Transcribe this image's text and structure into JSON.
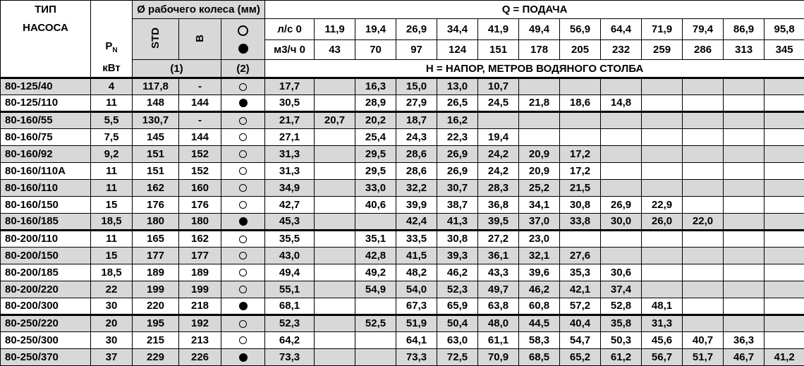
{
  "colors": {
    "grid": "#000000",
    "row_shade": "#d8d8d8",
    "background": "#ffffff"
  },
  "header": {
    "pump_type_line1": "ТИП",
    "pump_type_line2": "НАСОСА",
    "power_label": "P",
    "power_sub": "N",
    "power_unit": "кВт",
    "impeller_title": "Ø рабочего колеса (мм)",
    "impeller_std_label": "STD",
    "impeller_b_label": "В",
    "impeller_open_marker": "open-circle",
    "impeller_filled_marker": "filled-circle",
    "note1": "(1)",
    "note2": "(2)",
    "q_title": "Q = ПОДАЧА",
    "flow_ls": [
      "л/с 0",
      "11,9",
      "19,4",
      "26,9",
      "34,4",
      "41,9",
      "49,4",
      "56,9",
      "64,4",
      "71,9",
      "79,4",
      "86,9",
      "95,8"
    ],
    "flow_m3h": [
      "м3/ч 0",
      "43",
      "70",
      "97",
      "124",
      "151",
      "178",
      "205",
      "232",
      "259",
      "286",
      "313",
      "345"
    ],
    "head_note": "Н = НАПОР, МЕТРОВ ВОДЯНОГО СТОЛБА"
  },
  "rows": [
    {
      "type": "80-125/40",
      "pn": "4",
      "std": "117,8",
      "b": "-",
      "marker": "open",
      "group_end": false,
      "head": [
        "17,7",
        "",
        "16,3",
        "15,0",
        "13,0",
        "10,7",
        "",
        "",
        "",
        "",
        "",
        "",
        ""
      ]
    },
    {
      "type": "80-125/110",
      "pn": "11",
      "std": "148",
      "b": "144",
      "marker": "filled",
      "group_end": true,
      "head": [
        "30,5",
        "",
        "28,9",
        "27,9",
        "26,5",
        "24,5",
        "21,8",
        "18,6",
        "14,8",
        "",
        "",
        "",
        ""
      ]
    },
    {
      "type": "80-160/55",
      "pn": "5,5",
      "std": "130,7",
      "b": "-",
      "marker": "open",
      "group_end": false,
      "head": [
        "21,7",
        "20,7",
        "20,2",
        "18,7",
        "16,2",
        "",
        "",
        "",
        "",
        "",
        "",
        "",
        ""
      ]
    },
    {
      "type": "80-160/75",
      "pn": "7,5",
      "std": "145",
      "b": "144",
      "marker": "open",
      "group_end": false,
      "head": [
        "27,1",
        "",
        "25,4",
        "24,3",
        "22,3",
        "19,4",
        "",
        "",
        "",
        "",
        "",
        "",
        ""
      ]
    },
    {
      "type": "80-160/92",
      "pn": "9,2",
      "std": "151",
      "b": "152",
      "marker": "open",
      "group_end": false,
      "head": [
        "31,3",
        "",
        "29,5",
        "28,6",
        "26,9",
        "24,2",
        "20,9",
        "17,2",
        "",
        "",
        "",
        "",
        ""
      ]
    },
    {
      "type": "80-160/110A",
      "pn": "11",
      "std": "151",
      "b": "152",
      "marker": "open",
      "group_end": false,
      "head": [
        "31,3",
        "",
        "29,5",
        "28,6",
        "26,9",
        "24,2",
        "20,9",
        "17,2",
        "",
        "",
        "",
        "",
        ""
      ]
    },
    {
      "type": "80-160/110",
      "pn": "11",
      "std": "162",
      "b": "160",
      "marker": "open",
      "group_end": false,
      "head": [
        "34,9",
        "",
        "33,0",
        "32,2",
        "30,7",
        "28,3",
        "25,2",
        "21,5",
        "",
        "",
        "",
        "",
        ""
      ]
    },
    {
      "type": "80-160/150",
      "pn": "15",
      "std": "176",
      "b": "176",
      "marker": "open",
      "group_end": false,
      "head": [
        "42,7",
        "",
        "40,6",
        "39,9",
        "38,7",
        "36,8",
        "34,1",
        "30,8",
        "26,9",
        "22,9",
        "",
        "",
        ""
      ]
    },
    {
      "type": "80-160/185",
      "pn": "18,5",
      "std": "180",
      "b": "180",
      "marker": "filled",
      "group_end": true,
      "head": [
        "45,3",
        "",
        "",
        "42,4",
        "41,3",
        "39,5",
        "37,0",
        "33,8",
        "30,0",
        "26,0",
        "22,0",
        "",
        ""
      ]
    },
    {
      "type": "80-200/110",
      "pn": "11",
      "std": "165",
      "b": "162",
      "marker": "open",
      "group_end": false,
      "head": [
        "35,5",
        "",
        "35,1",
        "33,5",
        "30,8",
        "27,2",
        "23,0",
        "",
        "",
        "",
        "",
        "",
        ""
      ]
    },
    {
      "type": "80-200/150",
      "pn": "15",
      "std": "177",
      "b": "177",
      "marker": "open",
      "group_end": false,
      "head": [
        "43,0",
        "",
        "42,8",
        "41,5",
        "39,3",
        "36,1",
        "32,1",
        "27,6",
        "",
        "",
        "",
        "",
        ""
      ]
    },
    {
      "type": "80-200/185",
      "pn": "18,5",
      "std": "189",
      "b": "189",
      "marker": "open",
      "group_end": false,
      "head": [
        "49,4",
        "",
        "49,2",
        "48,2",
        "46,2",
        "43,3",
        "39,6",
        "35,3",
        "30,6",
        "",
        "",
        "",
        ""
      ]
    },
    {
      "type": "80-200/220",
      "pn": "22",
      "std": "199",
      "b": "199",
      "marker": "open",
      "group_end": false,
      "head": [
        "55,1",
        "",
        "54,9",
        "54,0",
        "52,3",
        "49,7",
        "46,2",
        "42,1",
        "37,4",
        "",
        "",
        "",
        ""
      ]
    },
    {
      "type": "80-200/300",
      "pn": "30",
      "std": "220",
      "b": "218",
      "marker": "filled",
      "group_end": true,
      "head": [
        "68,1",
        "",
        "",
        "67,3",
        "65,9",
        "63,8",
        "60,8",
        "57,2",
        "52,8",
        "48,1",
        "",
        "",
        ""
      ]
    },
    {
      "type": "80-250/220",
      "pn": "20",
      "std": "195",
      "b": "192",
      "marker": "open",
      "group_end": false,
      "head": [
        "52,3",
        "",
        "52,5",
        "51,9",
        "50,4",
        "48,0",
        "44,5",
        "40,4",
        "35,8",
        "31,3",
        "",
        "",
        ""
      ]
    },
    {
      "type": "80-250/300",
      "pn": "30",
      "std": "215",
      "b": "213",
      "marker": "open",
      "group_end": false,
      "head": [
        "64,2",
        "",
        "",
        "64,1",
        "63,0",
        "61,1",
        "58,3",
        "54,7",
        "50,3",
        "45,6",
        "40,7",
        "36,3",
        ""
      ]
    },
    {
      "type": "80-250/370",
      "pn": "37",
      "std": "229",
      "b": "226",
      "marker": "filled",
      "group_end": false,
      "head": [
        "73,3",
        "",
        "",
        "73,3",
        "72,5",
        "70,9",
        "68,5",
        "65,2",
        "61,2",
        "56,7",
        "51,7",
        "46,7",
        "41,2"
      ]
    }
  ]
}
